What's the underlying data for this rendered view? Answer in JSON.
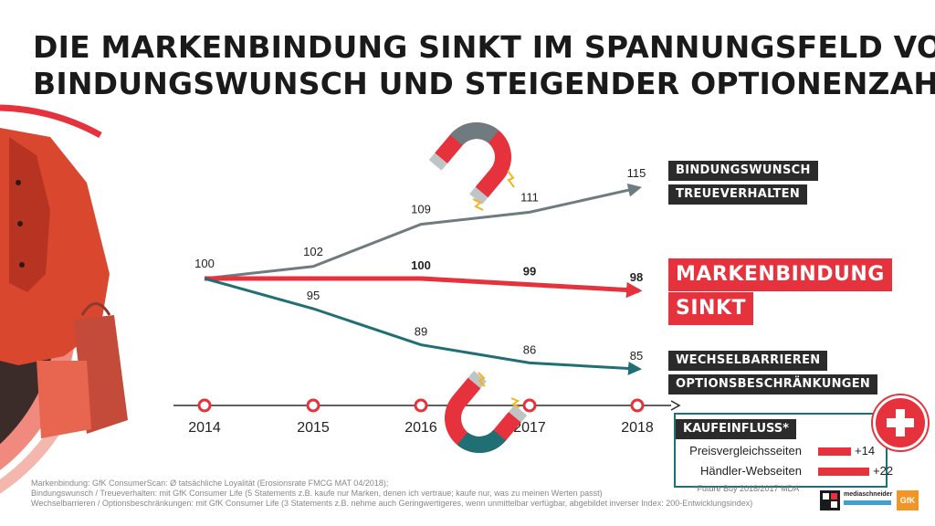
{
  "title": {
    "line1": "DIE MARKENBINDUNG SINKT IM SPANNUNGSFELD VON",
    "line2": "BINDUNGSWUNSCH UND STEIGENDER OPTIONENZAHL."
  },
  "colors": {
    "bindungswunsch": "#6f7b7f",
    "markenbindung": "#e5323c",
    "wechselbarrieren": "#1f6f75",
    "axis": "#2b2b2b",
    "tag_bg": "#2b2b2b"
  },
  "chart_data": {
    "type": "line",
    "x": [
      "2014",
      "2015",
      "2016",
      "2017",
      "2018"
    ],
    "series": [
      {
        "key": "bindungswunsch",
        "values": [
          100,
          102,
          109,
          111,
          115
        ],
        "labels": [
          "100",
          "102",
          "109",
          "111",
          "115"
        ]
      },
      {
        "key": "markenbindung",
        "values": [
          100,
          100,
          100,
          99,
          98
        ],
        "labels": [
          "",
          "",
          "100",
          "99",
          "98"
        ]
      },
      {
        "key": "wechselbarrieren",
        "values": [
          100,
          95,
          89,
          86,
          85
        ],
        "labels": [
          "",
          "95",
          "89",
          "86",
          "85"
        ]
      }
    ],
    "series_tags": {
      "bindungswunsch": [
        "BINDUNGSWUNSCH",
        "TREUEVERHALTEN"
      ],
      "markenbindung": [
        "MARKENBINDUNG",
        "SINKT"
      ],
      "wechselbarrieren": [
        "WECHSELBARRIEREN",
        "OPTIONSBESCHRÄNKUNGEN"
      ]
    },
    "ylim": [
      80,
      120
    ],
    "grid": false
  },
  "kaufeinfluss": {
    "title": "KAUFEINFLUSS*",
    "items": [
      {
        "label": "Preisvergleichsseiten",
        "value": 14,
        "value_label": "+14"
      },
      {
        "label": "Händler-Webseiten",
        "value": 22,
        "value_label": "+22"
      }
    ],
    "footnote": "*Future Buy 2018/2017 MDA"
  },
  "icons": {
    "magnet_top": "magnet-icon",
    "magnet_bottom": "magnet-icon",
    "badge": "plus-icon"
  },
  "footnotes": [
    "Markenbindung: GfK ConsumerScan: Ø tatsächliche Loyalität (Erosionsrate FMCG MAT 04/2018);",
    "Bindungswunsch / Treueverhalten: mit GfK Consumer Life (5 Statements z.B. kaufe nur Marken, denen ich vertraue; kaufe nur, was zu meinen Werten passt)",
    "Wechselbarrieren / Optionsbeschränkungen: mit GfK Consumer Life (3 Statements z.B. nehme auch Geringwertigeres, wenn unmittelbar verfügbar, abgebildet inverser Index: 200-Entwicklungsindex)"
  ],
  "logos": {
    "mediaschneider": "mediaschneider",
    "gfk": "GfK"
  }
}
